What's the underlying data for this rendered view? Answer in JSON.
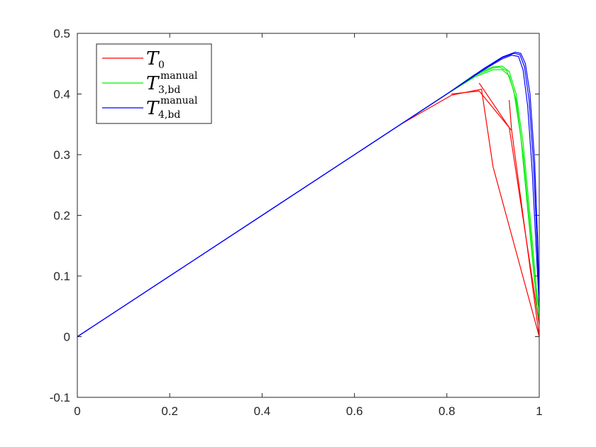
{
  "chart_data": {
    "type": "line",
    "title": "",
    "xlabel": "",
    "ylabel": "",
    "xlim": [
      0,
      1
    ],
    "ylim": [
      -0.1,
      0.5
    ],
    "xticks": [
      0,
      0.2,
      0.4,
      0.6,
      0.8,
      1
    ],
    "xtick_labels": [
      "0",
      "0.2",
      "0.4",
      "0.6",
      "0.8",
      "1"
    ],
    "yticks": [
      -0.1,
      0,
      0.1,
      0.2,
      0.3,
      0.4,
      0.5
    ],
    "ytick_labels": [
      "-0.1",
      "0",
      "0.1",
      "0.2",
      "0.3",
      "0.4",
      "0.5"
    ],
    "grid": false,
    "legend_position": "top-left",
    "series": [
      {
        "color": "#ff0000",
        "legend_symbol": "T",
        "legend_sub": "0",
        "legend_sup": "",
        "lines": [
          [
            [
              0.7,
              0.35
            ],
            [
              0.81,
              0.398
            ],
            [
              0.875,
              0.408
            ],
            [
              0.9,
              0.28
            ],
            [
              1.0,
              0.0
            ]
          ],
          [
            [
              0.81,
              0.4
            ],
            [
              0.87,
              0.405
            ],
            [
              0.94,
              0.34
            ]
          ],
          [
            [
              0.87,
              0.418
            ],
            [
              0.935,
              0.345
            ],
            [
              1.0,
              0.02
            ]
          ],
          [
            [
              0.935,
              0.39
            ],
            [
              0.94,
              0.342
            ],
            [
              1.0,
              0.0
            ]
          ]
        ]
      },
      {
        "color": "#00ee00",
        "legend_symbol": "T",
        "legend_sub": "3,bd",
        "legend_sup": "manual",
        "lines": [
          [
            [
              0.7,
              0.35
            ],
            [
              0.8,
              0.4
            ],
            [
              0.86,
              0.428
            ],
            [
              0.9,
              0.44
            ],
            [
              0.92,
              0.44
            ],
            [
              0.935,
              0.43
            ],
            [
              0.95,
              0.39
            ],
            [
              0.965,
              0.3
            ],
            [
              0.98,
              0.18
            ],
            [
              0.995,
              0.05
            ],
            [
              1.0,
              0.03
            ]
          ],
          [
            [
              0.7,
              0.35
            ],
            [
              0.8,
              0.4
            ],
            [
              0.86,
              0.43
            ],
            [
              0.9,
              0.443
            ],
            [
              0.915,
              0.444
            ],
            [
              0.93,
              0.438
            ],
            [
              0.945,
              0.405
            ],
            [
              0.96,
              0.33
            ],
            [
              0.975,
              0.21
            ],
            [
              0.99,
              0.09
            ],
            [
              1.0,
              0.04
            ]
          ],
          [
            [
              0.7,
              0.35
            ],
            [
              0.8,
              0.4
            ],
            [
              0.86,
              0.432
            ],
            [
              0.9,
              0.445
            ],
            [
              0.92,
              0.446
            ],
            [
              0.935,
              0.437
            ],
            [
              0.95,
              0.4
            ],
            [
              0.965,
              0.32
            ],
            [
              0.98,
              0.2
            ],
            [
              0.995,
              0.07
            ],
            [
              1.0,
              0.045
            ]
          ]
        ]
      },
      {
        "color": "#0000ff",
        "legend_symbol": "T",
        "legend_sub": "4,bd",
        "legend_sup": "manual",
        "lines": [
          [
            [
              0.0,
              0.0
            ],
            [
              0.6,
              0.3
            ],
            [
              0.8,
              0.4
            ],
            [
              0.88,
              0.44
            ],
            [
              0.92,
              0.458
            ],
            [
              0.94,
              0.464
            ],
            [
              0.955,
              0.462
            ],
            [
              0.965,
              0.44
            ],
            [
              0.975,
              0.38
            ],
            [
              0.985,
              0.27
            ],
            [
              0.993,
              0.15
            ],
            [
              1.0,
              0.05
            ]
          ],
          [
            [
              0.0,
              0.0
            ],
            [
              0.6,
              0.3
            ],
            [
              0.8,
              0.4
            ],
            [
              0.88,
              0.441
            ],
            [
              0.92,
              0.46
            ],
            [
              0.945,
              0.467
            ],
            [
              0.958,
              0.465
            ],
            [
              0.968,
              0.445
            ],
            [
              0.978,
              0.39
            ],
            [
              0.988,
              0.28
            ],
            [
              0.995,
              0.16
            ],
            [
              1.0,
              0.06
            ]
          ],
          [
            [
              0.0,
              0.0
            ],
            [
              0.6,
              0.3
            ],
            [
              0.8,
              0.4
            ],
            [
              0.88,
              0.442
            ],
            [
              0.92,
              0.461
            ],
            [
              0.948,
              0.469
            ],
            [
              0.96,
              0.467
            ],
            [
              0.97,
              0.45
            ],
            [
              0.98,
              0.4
            ],
            [
              0.99,
              0.29
            ],
            [
              0.996,
              0.17
            ],
            [
              1.0,
              0.07
            ]
          ]
        ]
      }
    ]
  }
}
